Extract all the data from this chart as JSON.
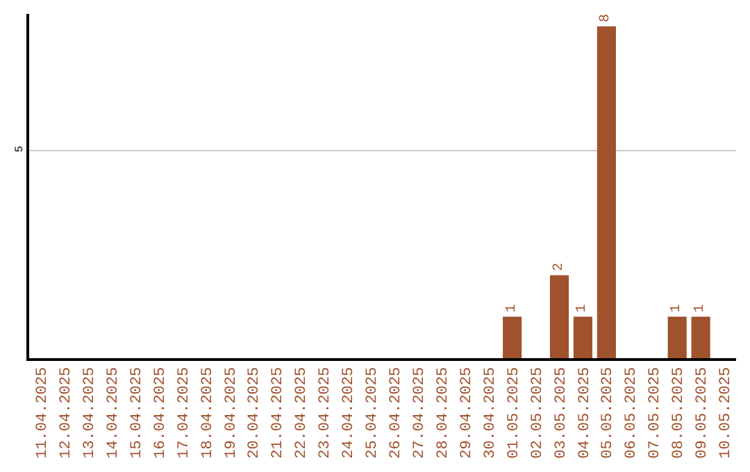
{
  "chart_data": {
    "type": "bar",
    "ylim": [
      0,
      8.3
    ],
    "yticks": [
      5
    ],
    "grid": "y",
    "categories": [
      "11.04.2025",
      "12.04.2025",
      "13.04.2025",
      "14.04.2025",
      "15.04.2025",
      "16.04.2025",
      "17.04.2025",
      "18.04.2025",
      "19.04.2025",
      "20.04.2025",
      "21.04.2025",
      "22.04.2025",
      "23.04.2025",
      "24.04.2025",
      "25.04.2025",
      "26.04.2025",
      "27.04.2025",
      "28.04.2025",
      "29.04.2025",
      "30.04.2025",
      "01.05.2025",
      "02.05.2025",
      "03.05.2025",
      "04.05.2025",
      "05.05.2025",
      "06.05.2025",
      "07.05.2025",
      "08.05.2025",
      "09.05.2025",
      "10.05.2025"
    ],
    "values": [
      null,
      null,
      null,
      null,
      null,
      null,
      null,
      null,
      null,
      null,
      null,
      null,
      null,
      null,
      null,
      null,
      null,
      null,
      null,
      null,
      1,
      null,
      2,
      1,
      8,
      null,
      null,
      1,
      1,
      null
    ],
    "data_labels": true,
    "color": "#a0522d",
    "legend": false
  }
}
